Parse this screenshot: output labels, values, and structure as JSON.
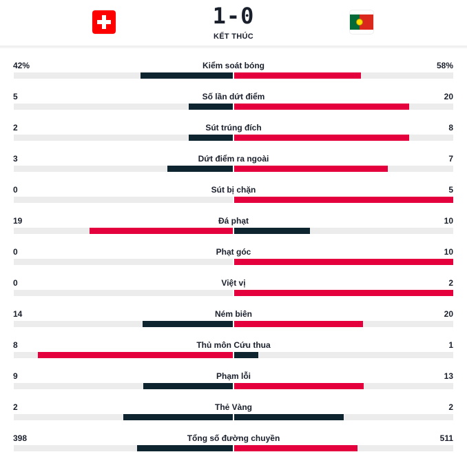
{
  "match": {
    "score": "1-0",
    "status": "KẾT THÚC",
    "home_flag_icon": "switzerland-flag-icon",
    "away_flag_icon": "portugal-flag-icon"
  },
  "colors": {
    "leader": "#e4003c",
    "trailer": "#0e2530",
    "track": "#ececec"
  },
  "stats": [
    {
      "label": "Kiểm soát bóng",
      "home": "42%",
      "away": "58%",
      "home_share": 0.42,
      "away_share": 0.58
    },
    {
      "label": "Số lần dứt điểm",
      "home": "5",
      "away": "20",
      "home_share": 0.2,
      "away_share": 0.8
    },
    {
      "label": "Sút trúng đích",
      "home": "2",
      "away": "8",
      "home_share": 0.2,
      "away_share": 0.8
    },
    {
      "label": "Dứt điểm ra ngoài",
      "home": "3",
      "away": "7",
      "home_share": 0.3,
      "away_share": 0.7
    },
    {
      "label": "Sút bị chặn",
      "home": "0",
      "away": "5",
      "home_share": 0.0,
      "away_share": 1.0
    },
    {
      "label": "Đá phạt",
      "home": "19",
      "away": "10",
      "home_share": 0.655,
      "away_share": 0.345
    },
    {
      "label": "Phạt góc",
      "home": "0",
      "away": "10",
      "home_share": 0.0,
      "away_share": 1.0
    },
    {
      "label": "Việt vị",
      "home": "0",
      "away": "2",
      "home_share": 0.0,
      "away_share": 1.0
    },
    {
      "label": "Ném biên",
      "home": "14",
      "away": "20",
      "home_share": 0.412,
      "away_share": 0.588
    },
    {
      "label": "Thủ môn Cứu thua",
      "home": "8",
      "away": "1",
      "home_share": 0.889,
      "away_share": 0.111
    },
    {
      "label": "Phạm lỗi",
      "home": "9",
      "away": "13",
      "home_share": 0.409,
      "away_share": 0.591
    },
    {
      "label": "Thẻ Vàng",
      "home": "2",
      "away": "2",
      "home_share": 0.5,
      "away_share": 0.5
    },
    {
      "label": "Tổng số đường chuyền",
      "home": "398",
      "away": "511",
      "home_share": 0.438,
      "away_share": 0.562
    }
  ]
}
